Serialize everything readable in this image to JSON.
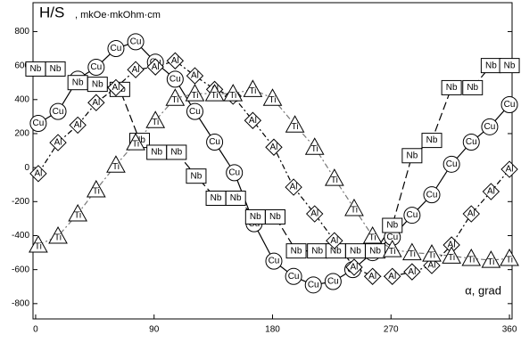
{
  "chart_data": {
    "type": "line",
    "y_label": "H/S",
    "y_unit": ", mkOe·mkOhm·cm",
    "x_label": "α, grad",
    "xlim": [
      -2,
      362
    ],
    "xticks": [
      0,
      90,
      180,
      270,
      360
    ],
    "ylim": [
      -890,
      970
    ],
    "yticks": [
      -800,
      -600,
      -400,
      -200,
      0,
      200,
      400,
      600,
      800
    ],
    "series": [
      {
        "name": "Cu",
        "color": "#000000",
        "marker": "circle",
        "dash": "solid",
        "x": [
          2,
          17,
          32,
          46,
          61,
          76,
          91,
          106,
          121,
          136,
          151,
          166,
          181,
          196,
          211,
          226,
          241,
          256,
          271,
          286,
          301,
          316,
          331,
          345,
          360
        ],
        "values": [
          260,
          330,
          520,
          590,
          700,
          740,
          620,
          520,
          330,
          150,
          -30,
          -330,
          -550,
          -640,
          -690,
          -670,
          -600,
          -500,
          -410,
          -280,
          -160,
          20,
          150,
          240,
          370
        ]
      },
      {
        "name": "Nb",
        "color": "#000000",
        "marker": "square",
        "dash": "long",
        "x": [
          0,
          15,
          32,
          47,
          64,
          79,
          92,
          107,
          122,
          137,
          152,
          167,
          182,
          198,
          214,
          228,
          243,
          258,
          271,
          286,
          301,
          316,
          332,
          346,
          360
        ],
        "values": [
          580,
          580,
          500,
          490,
          460,
          160,
          90,
          90,
          -50,
          -180,
          -180,
          -290,
          -290,
          -490,
          -490,
          -490,
          -490,
          -490,
          -340,
          70,
          160,
          470,
          470,
          600,
          600
        ]
      },
      {
        "name": "Al",
        "color": "#000000",
        "marker": "diamond",
        "dash": "dashdot",
        "x": [
          2,
          17,
          32,
          46,
          61,
          76,
          91,
          106,
          121,
          136,
          150,
          165,
          181,
          196,
          212,
          227,
          242,
          256,
          271,
          286,
          301,
          316,
          331,
          346,
          360
        ],
        "values": [
          -35,
          147,
          250,
          382,
          470,
          576,
          592,
          628,
          540,
          460,
          420,
          277,
          120,
          -115,
          -272,
          -430,
          -586,
          -640,
          -640,
          -613,
          -576,
          -455,
          -272,
          -141,
          -10
        ]
      },
      {
        "name": "Ti",
        "color": "#777777",
        "marker": "triangle",
        "dash": "dashdot",
        "x": [
          2,
          17,
          32,
          46,
          61,
          76,
          91,
          106,
          121,
          136,
          150,
          165,
          180,
          197,
          212,
          227,
          242,
          256,
          271,
          286,
          301,
          316,
          331,
          346,
          360
        ],
        "values": [
          -455,
          -403,
          -272,
          -130,
          15,
          147,
          277,
          408,
          435,
          435,
          435,
          460,
          408,
          251,
          120,
          -63,
          -240,
          -403,
          -482,
          -500,
          -508,
          -520,
          -534,
          -545,
          -534
        ]
      }
    ]
  }
}
